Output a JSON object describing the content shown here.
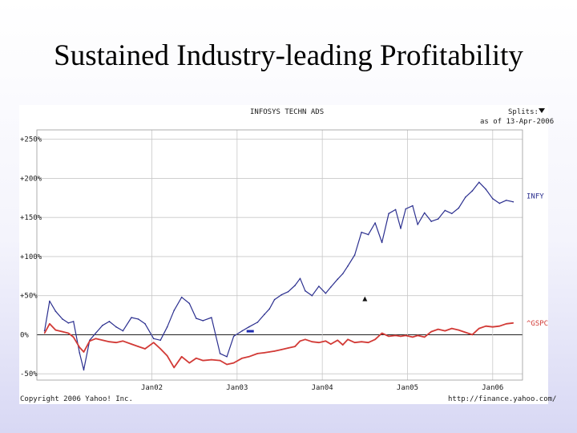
{
  "slide": {
    "title": "Sustained Industry-leading Profitability"
  },
  "chart_data": {
    "type": "line",
    "title": "INFOSYS TECHN ADS",
    "splits_label": "Splits:",
    "date_label": "as of 13-Apr-2006",
    "copyright": "Copyright 2006 Yahoo! Inc.",
    "source_url": "http://finance.yahoo.com/",
    "y_ticks": [
      "+250%",
      "+200%",
      "+150%",
      "+100%",
      "+50%",
      "0%",
      "-50%"
    ],
    "y_tick_values": [
      250,
      200,
      150,
      100,
      50,
      0,
      -50
    ],
    "ylim": [
      -58,
      262
    ],
    "x_ticks": [
      "Jan02",
      "Jan03",
      "Jan04",
      "Jan05",
      "Jan06"
    ],
    "x_tick_values": [
      2002.0,
      2003.0,
      2004.0,
      2005.0,
      2006.0
    ],
    "xlim": [
      2000.65,
      2006.35
    ],
    "grid": true,
    "legend_position": "right",
    "colors": {
      "INFY": "#2b2f8f",
      "^GSPC": "#d23a36",
      "grid": "#c8c8c8"
    },
    "series": [
      {
        "name": "INFY",
        "x": [
          2000.74,
          2000.8,
          2000.87,
          2000.95,
          2001.02,
          2001.08,
          2001.15,
          2001.2,
          2001.27,
          2001.34,
          2001.42,
          2001.5,
          2001.58,
          2001.66,
          2001.76,
          2001.84,
          2001.92,
          2002.02,
          2002.1,
          2002.18,
          2002.26,
          2002.35,
          2002.44,
          2002.52,
          2002.6,
          2002.7,
          2002.8,
          2002.88,
          2002.96,
          2003.06,
          2003.14,
          2003.24,
          2003.32,
          2003.38,
          2003.44,
          2003.52,
          2003.6,
          2003.68,
          2003.74,
          2003.8,
          2003.88,
          2003.96,
          2004.04,
          2004.1,
          2004.18,
          2004.24,
          2004.3,
          2004.38,
          2004.46,
          2004.54,
          2004.62,
          2004.7,
          2004.78,
          2004.86,
          2004.92,
          2004.98,
          2005.06,
          2005.12,
          2005.2,
          2005.28,
          2005.36,
          2005.44,
          2005.52,
          2005.6,
          2005.68,
          2005.76,
          2005.84,
          2005.92,
          2006.0,
          2006.08,
          2006.16,
          2006.24
        ],
        "y": [
          5,
          43,
          30,
          20,
          15,
          17,
          -23,
          -45,
          -7,
          2,
          12,
          17,
          10,
          5,
          22,
          20,
          14,
          -5,
          -7,
          10,
          31,
          48,
          40,
          21,
          18,
          22,
          -24,
          -28,
          -2,
          5,
          10,
          16,
          26,
          33,
          45,
          51,
          55,
          63,
          72,
          56,
          50,
          62,
          53,
          61,
          71,
          78,
          88,
          102,
          131,
          128,
          143,
          118,
          155,
          160,
          136,
          161,
          165,
          141,
          156,
          145,
          148,
          159,
          155,
          162,
          176,
          184,
          195,
          186,
          174,
          168,
          172,
          170
        ]
      },
      {
        "name": "^GSPC",
        "x": [
          2000.74,
          2000.8,
          2000.87,
          2000.95,
          2001.02,
          2001.08,
          2001.15,
          2001.2,
          2001.27,
          2001.34,
          2001.42,
          2001.5,
          2001.58,
          2001.66,
          2001.76,
          2001.84,
          2001.92,
          2002.02,
          2002.1,
          2002.18,
          2002.26,
          2002.35,
          2002.44,
          2002.52,
          2002.6,
          2002.7,
          2002.8,
          2002.88,
          2002.96,
          2003.06,
          2003.14,
          2003.24,
          2003.32,
          2003.38,
          2003.44,
          2003.52,
          2003.6,
          2003.68,
          2003.74,
          2003.8,
          2003.88,
          2003.96,
          2004.04,
          2004.1,
          2004.18,
          2004.24,
          2004.3,
          2004.38,
          2004.46,
          2004.54,
          2004.62,
          2004.7,
          2004.78,
          2004.86,
          2004.92,
          2004.98,
          2005.06,
          2005.12,
          2005.2,
          2005.28,
          2005.36,
          2005.44,
          2005.52,
          2005.6,
          2005.68,
          2005.76,
          2005.84,
          2005.92,
          2006.0,
          2006.08,
          2006.16,
          2006.24
        ],
        "y": [
          2,
          14,
          6,
          4,
          2,
          -3,
          -16,
          -22,
          -8,
          -5,
          -7,
          -9,
          -10,
          -8,
          -12,
          -15,
          -18,
          -10,
          -18,
          -27,
          -42,
          -28,
          -36,
          -30,
          -33,
          -32,
          -33,
          -38,
          -36,
          -30,
          -28,
          -24,
          -23,
          -22,
          -21,
          -19,
          -17,
          -15,
          -8,
          -6,
          -9,
          -10,
          -8,
          -12,
          -7,
          -13,
          -6,
          -10,
          -9,
          -10,
          -6,
          2,
          -2,
          -1,
          -2,
          -1,
          -3,
          -1,
          -3,
          4,
          7,
          5,
          8,
          6,
          3,
          0,
          8,
          11,
          10,
          11,
          14,
          15
        ]
      }
    ]
  }
}
